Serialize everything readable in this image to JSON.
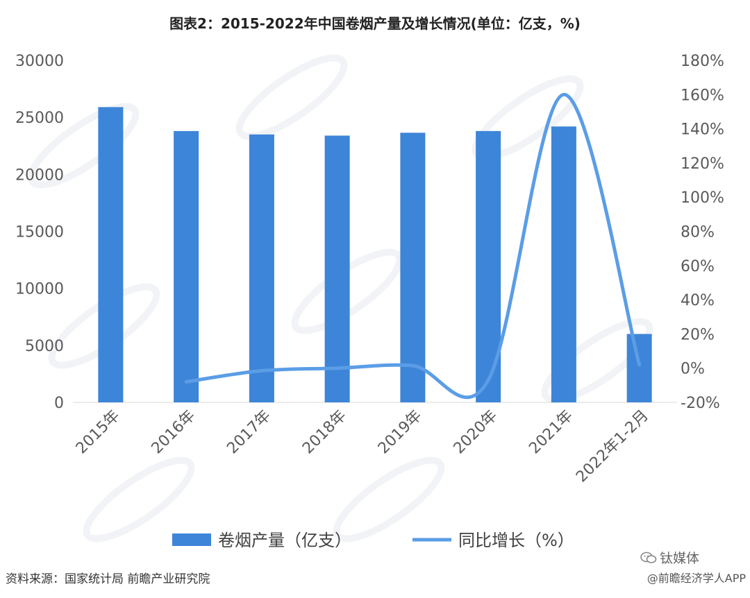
{
  "title": "图表2：2015-2022年中国卷烟产量及增长情况(单位：亿支，%)",
  "source": "资料来源：国家统计局 前瞻产业研究院",
  "credit": "@前瞻经济学人APP",
  "wechat_label": "钛媒体",
  "wechat_icon": "wechat-icon",
  "chart_data": {
    "type": "bar",
    "categories": [
      "2015年",
      "2016年",
      "2017年",
      "2018年",
      "2019年",
      "2020年",
      "2021年",
      "2022年1-2月"
    ],
    "series": [
      {
        "name": "卷烟产量（亿支）",
        "type": "bar",
        "axis": "left",
        "color": "#3d85d8",
        "values": [
          25900,
          23800,
          23500,
          23400,
          23650,
          23800,
          24200,
          6000
        ]
      },
      {
        "name": "同比增长（%）",
        "type": "line",
        "axis": "right",
        "color": "#5b9de6",
        "values": [
          null,
          -8,
          -1.5,
          0,
          1.5,
          -7,
          160,
          2
        ]
      }
    ],
    "y_left": {
      "min": 0,
      "max": 30000,
      "ticks": [
        0,
        5000,
        10000,
        15000,
        20000,
        25000,
        30000
      ]
    },
    "y_right": {
      "min": -20,
      "max": 180,
      "ticks": [
        "-20%",
        "0%",
        "20%",
        "40%",
        "60%",
        "80%",
        "100%",
        "120%",
        "140%",
        "160%",
        "180%"
      ]
    },
    "grid": false,
    "legend_position": "bottom"
  }
}
